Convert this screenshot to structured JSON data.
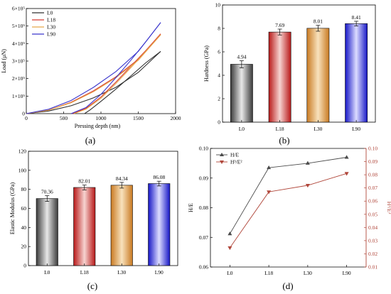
{
  "panels": [
    "(a)",
    "(b)",
    "(c)",
    "(d)"
  ],
  "colors": {
    "L0": "#303030",
    "L18": "#d63b30",
    "L30": "#e7a64a",
    "L90": "#3a35cc",
    "HE": "#4b4b4b",
    "H3E2": "#b0463a"
  },
  "chart_data": [
    {
      "type": "line",
      "panel": "(a)",
      "xlabel": "Pressing depth (nm)",
      "ylabel": "Load (μN)",
      "xlim": [
        0,
        2000
      ],
      "ylim": [
        0,
        600000
      ],
      "xticks": [
        "0",
        "500",
        "1000",
        "1500",
        "2000"
      ],
      "yticks": [
        "0",
        "1×10⁵",
        "2×10⁵",
        "3×10⁵",
        "4×10⁵",
        "5×10⁵",
        "6×10⁵"
      ],
      "legend_position": "top-left",
      "series": [
        {
          "name": "L0",
          "loading": [
            [
              0,
              0
            ],
            [
              300,
              15000
            ],
            [
              600,
              45000
            ],
            [
              900,
              90000
            ],
            [
              1200,
              150000
            ],
            [
              1500,
              235000
            ],
            [
              1800,
              355000
            ]
          ],
          "unloading": [
            [
              1800,
              355000
            ],
            [
              1600,
              290000
            ],
            [
              1400,
              215000
            ],
            [
              1200,
              140000
            ],
            [
              1000,
              70000
            ],
            [
              850,
              20000
            ],
            [
              780,
              0
            ]
          ]
        },
        {
          "name": "L18",
          "loading": [
            [
              0,
              0
            ],
            [
              300,
              20000
            ],
            [
              600,
              65000
            ],
            [
              900,
              130000
            ],
            [
              1200,
              210000
            ],
            [
              1500,
              310000
            ],
            [
              1800,
              455000
            ]
          ],
          "unloading": [
            [
              1800,
              455000
            ],
            [
              1600,
              360000
            ],
            [
              1400,
              270000
            ],
            [
              1200,
              180000
            ],
            [
              1000,
              95000
            ],
            [
              800,
              30000
            ],
            [
              620,
              0
            ]
          ]
        },
        {
          "name": "L30",
          "loading": [
            [
              0,
              0
            ],
            [
              300,
              20000
            ],
            [
              600,
              62000
            ],
            [
              900,
              125000
            ],
            [
              1200,
              205000
            ],
            [
              1500,
              305000
            ],
            [
              1800,
              450000
            ]
          ],
          "unloading": [
            [
              1800,
              450000
            ],
            [
              1600,
              355000
            ],
            [
              1400,
              262000
            ],
            [
              1200,
              172000
            ],
            [
              1000,
              88000
            ],
            [
              800,
              26000
            ],
            [
              640,
              0
            ]
          ]
        },
        {
          "name": "L90",
          "loading": [
            [
              0,
              0
            ],
            [
              300,
              25000
            ],
            [
              600,
              75000
            ],
            [
              900,
              150000
            ],
            [
              1200,
              240000
            ],
            [
              1500,
              355000
            ],
            [
              1800,
              520000
            ]
          ],
          "unloading": [
            [
              1800,
              520000
            ],
            [
              1600,
              410000
            ],
            [
              1400,
              305000
            ],
            [
              1200,
              205000
            ],
            [
              1000,
              110000
            ],
            [
              800,
              35000
            ],
            [
              600,
              0
            ]
          ]
        }
      ]
    },
    {
      "type": "bar",
      "panel": "(b)",
      "ylabel": "Hardness (GPa)",
      "categories": [
        "L0",
        "L18",
        "L30",
        "L90"
      ],
      "values": [
        4.94,
        7.69,
        8.01,
        8.41
      ],
      "value_labels": [
        "4.94",
        "7.69",
        "8.01",
        "8.41"
      ],
      "errors": [
        0.3,
        0.25,
        0.25,
        0.2
      ],
      "ylim": [
        0,
        10
      ],
      "yticks": [
        "0",
        "2",
        "4",
        "6",
        "8",
        "10"
      ]
    },
    {
      "type": "bar",
      "panel": "(c)",
      "ylabel": "Elastic Modulus (GPa)",
      "categories": [
        "L0",
        "L18",
        "L30",
        "L90"
      ],
      "values": [
        70.36,
        82.01,
        84.34,
        86.08
      ],
      "value_labels": [
        "70.36",
        "82.01",
        "84.34",
        "86.08"
      ],
      "errors": [
        3,
        2.5,
        3,
        2.5
      ],
      "ylim": [
        0,
        120
      ],
      "yticks": [
        "0",
        "20",
        "40",
        "60",
        "80",
        "100",
        "120"
      ]
    },
    {
      "type": "line",
      "panel": "(d)",
      "categories": [
        "L0",
        "L18",
        "L30",
        "L90"
      ],
      "ylabel": "H/E",
      "y2label": "H³/E²",
      "ylim": [
        0.06,
        0.1
      ],
      "y2lim": [
        0.01,
        0.1
      ],
      "yticks": [
        "0.06",
        "0.07",
        "0.08",
        "0.09",
        "0.10"
      ],
      "y2ticks": [
        "0.01",
        "0.02",
        "0.03",
        "0.04",
        "0.05",
        "0.06",
        "0.07",
        "0.08",
        "0.09",
        "0.10"
      ],
      "legend_position": "top-left",
      "series": [
        {
          "name": "H/E",
          "axis": "left",
          "values": [
            0.0712,
            0.0935,
            0.095,
            0.097
          ]
        },
        {
          "name": "H³/E²",
          "axis": "right",
          "values": [
            0.0246,
            0.067,
            0.072,
            0.081
          ]
        }
      ]
    }
  ]
}
